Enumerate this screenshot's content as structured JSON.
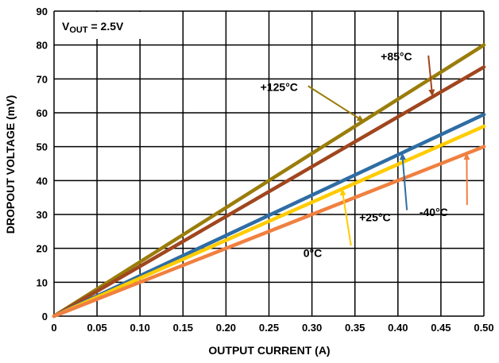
{
  "chart_data": {
    "type": "line",
    "xlabel": "OUTPUT CURRENT (A)",
    "ylabel": "DROPOUT VOLTAGE (mV)",
    "xlim": [
      0,
      0.5
    ],
    "ylim": [
      0,
      90
    ],
    "x_ticks": [
      "0",
      "0.05",
      "0.10",
      "0.15",
      "0.20",
      "0.25",
      "0.30",
      "0.35",
      "0.40",
      "0.45",
      "0.50"
    ],
    "y_ticks": [
      "0",
      "10",
      "20",
      "30",
      "40",
      "50",
      "60",
      "70",
      "80",
      "90"
    ],
    "grid": true,
    "condition_label": {
      "main": "V",
      "sub": "OUT",
      "rest": " = 2.5V"
    },
    "series": [
      {
        "name": "+125°C",
        "color": "#9a7d0a",
        "x": [
          0,
          0.5
        ],
        "y": [
          0,
          80
        ]
      },
      {
        "name": "+85°C",
        "color": "#a0461e",
        "x": [
          0,
          0.5
        ],
        "y": [
          0,
          73.5
        ]
      },
      {
        "name": "+25°C",
        "color": "#2e6da4",
        "x": [
          0,
          0.5
        ],
        "y": [
          0,
          59.5
        ]
      },
      {
        "name": "0°C",
        "color": "#ffcc00",
        "x": [
          0,
          0.5
        ],
        "y": [
          0,
          56
        ]
      },
      {
        "name": "-40°C",
        "color": "#f08040",
        "x": [
          0,
          0.5
        ],
        "y": [
          0,
          50
        ]
      }
    ],
    "annotations": [
      {
        "text": "+125°C",
        "series": 0,
        "text_at": [
          0.24,
          66.5
        ],
        "arrow_to": [
          0.36,
          57.5
        ]
      },
      {
        "text": "+85°C",
        "series": 1,
        "text_at": [
          0.38,
          75.5
        ],
        "arrow_to": [
          0.44,
          65
        ]
      },
      {
        "text": "+25°C",
        "series": 2,
        "text_at": [
          0.355,
          28
        ],
        "arrow_to": [
          0.405,
          48
        ]
      },
      {
        "text": "0°C",
        "series": 3,
        "text_at": [
          0.29,
          17.5
        ],
        "arrow_to": [
          0.335,
          37.5
        ]
      },
      {
        "text": "-40°C",
        "series": 4,
        "text_at": [
          0.425,
          29.5
        ],
        "arrow_to": [
          0.48,
          48
        ]
      }
    ]
  }
}
